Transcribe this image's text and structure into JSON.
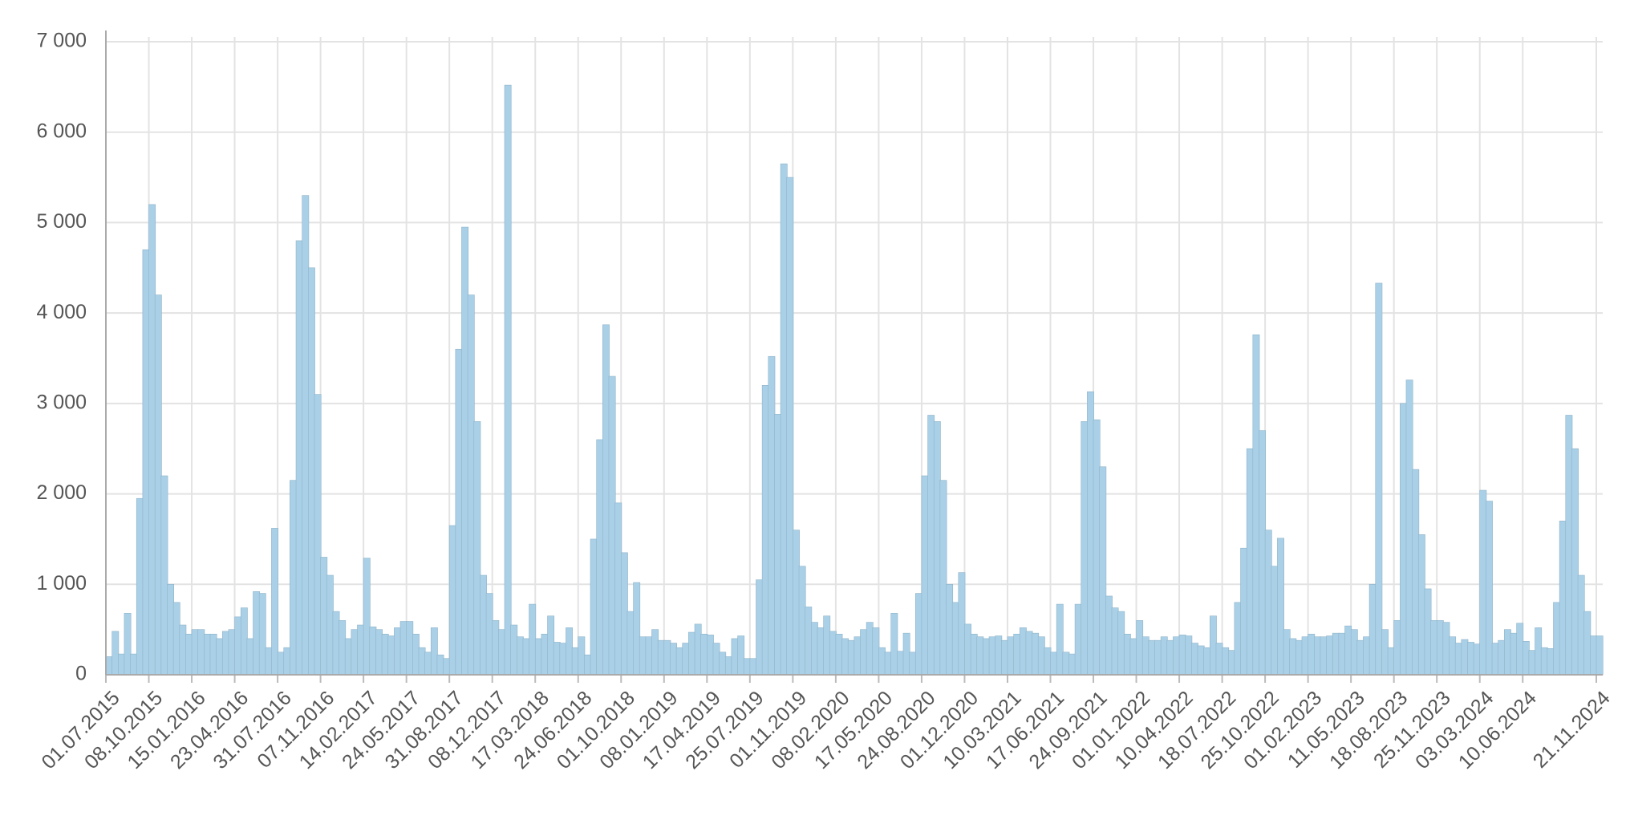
{
  "chart_data": {
    "type": "step-area",
    "color": "#a9d0e7",
    "ylim": [
      0,
      7000
    ],
    "yticks": [
      0,
      {
        "value": 1000,
        "label": "1 000"
      },
      {
        "value": 2000,
        "label": "2 000"
      },
      {
        "value": 3000,
        "label": "3 000"
      },
      {
        "value": 4000,
        "label": "4 000"
      },
      {
        "value": 5000,
        "label": "5 000"
      },
      {
        "value": 6000,
        "label": "6 000"
      },
      {
        "value": 7000,
        "label": "7 000"
      }
    ],
    "grid": true,
    "categories": [
      "01.07.2015",
      null,
      null,
      null,
      null,
      null,
      null,
      "08.10.2015",
      null,
      null,
      null,
      null,
      null,
      null,
      "15.01.2016",
      null,
      null,
      null,
      null,
      null,
      null,
      "23.04.2016",
      null,
      null,
      null,
      null,
      null,
      null,
      "31.07.2016",
      null,
      null,
      null,
      null,
      null,
      null,
      "07.11.2016",
      null,
      null,
      null,
      null,
      null,
      null,
      "14.02.2017",
      null,
      null,
      null,
      null,
      null,
      null,
      "24.05.2017",
      null,
      null,
      null,
      null,
      null,
      null,
      "31.08.2017",
      null,
      null,
      null,
      null,
      null,
      null,
      "08.12.2017",
      null,
      null,
      null,
      null,
      null,
      null,
      "17.03.2018",
      null,
      null,
      null,
      null,
      null,
      null,
      "24.06.2018",
      null,
      null,
      null,
      null,
      null,
      null,
      "01.10.2018",
      null,
      null,
      null,
      null,
      null,
      null,
      "08.01.2019",
      null,
      null,
      null,
      null,
      null,
      null,
      "17.04.2019",
      null,
      null,
      null,
      null,
      null,
      null,
      "25.07.2019",
      null,
      null,
      null,
      null,
      null,
      null,
      "01.11.2019",
      null,
      null,
      null,
      null,
      null,
      null,
      "08.02.2020",
      null,
      null,
      null,
      null,
      null,
      null,
      "17.05.2020",
      null,
      null,
      null,
      null,
      null,
      null,
      "24.08.2020",
      null,
      null,
      null,
      null,
      null,
      null,
      "01.12.2020",
      null,
      null,
      null,
      null,
      null,
      null,
      "10.03.2021",
      null,
      null,
      null,
      null,
      null,
      null,
      "17.06.2021",
      null,
      null,
      null,
      null,
      null,
      null,
      "24.09.2021",
      null,
      null,
      null,
      null,
      null,
      null,
      "01.01.2022",
      null,
      null,
      null,
      null,
      null,
      null,
      "10.04.2022",
      null,
      null,
      null,
      null,
      null,
      null,
      "18.07.2022",
      null,
      null,
      null,
      null,
      null,
      null,
      "25.10.2022",
      null,
      null,
      null,
      null,
      null,
      null,
      "01.02.2023",
      null,
      null,
      null,
      null,
      null,
      null,
      "11.05.2023",
      null,
      null,
      null,
      null,
      null,
      null,
      "18.08.2023",
      null,
      null,
      null,
      null,
      null,
      null,
      "25.11.2023",
      null,
      null,
      null,
      null,
      null,
      null,
      "03.03.2024",
      null,
      null,
      null,
      null,
      null,
      null,
      "10.06.2024",
      null,
      null,
      null,
      null,
      null,
      null,
      null,
      null,
      null,
      null,
      null,
      "21.11.2024"
    ],
    "values": [
      200,
      480,
      230,
      680,
      230,
      1950,
      4700,
      5200,
      4200,
      2200,
      1000,
      800,
      550,
      450,
      500,
      500,
      450,
      450,
      400,
      480,
      500,
      640,
      740,
      400,
      920,
      900,
      300,
      1620,
      250,
      300,
      2150,
      4800,
      5300,
      4500,
      3100,
      1300,
      1100,
      700,
      600,
      400,
      500,
      550,
      1290,
      530,
      500,
      450,
      430,
      520,
      590,
      590,
      450,
      300,
      250,
      520,
      220,
      180,
      1650,
      3600,
      4950,
      4200,
      2800,
      1100,
      900,
      600,
      500,
      6520,
      550,
      420,
      400,
      780,
      400,
      450,
      650,
      360,
      350,
      520,
      300,
      420,
      220,
      1500,
      2600,
      3870,
      3300,
      1900,
      1350,
      700,
      1020,
      420,
      420,
      500,
      380,
      380,
      350,
      300,
      350,
      470,
      560,
      450,
      440,
      350,
      250,
      200,
      400,
      430,
      180,
      180,
      1050,
      3200,
      3520,
      2880,
      5650,
      5500,
      1600,
      1200,
      750,
      580,
      520,
      650,
      480,
      450,
      400,
      380,
      420,
      500,
      580,
      520,
      300,
      250,
      680,
      260,
      460,
      250,
      900,
      2200,
      2870,
      2800,
      2150,
      1000,
      800,
      1130,
      560,
      450,
      420,
      400,
      420,
      430,
      380,
      420,
      450,
      520,
      480,
      460,
      420,
      300,
      250,
      780,
      250,
      230,
      780,
      2800,
      3130,
      2820,
      2300,
      870,
      740,
      700,
      450,
      400,
      600,
      420,
      380,
      380,
      420,
      380,
      420,
      440,
      430,
      350,
      320,
      300,
      650,
      350,
      300,
      270,
      800,
      1400,
      2500,
      3760,
      2700,
      1600,
      1200,
      1510,
      500,
      400,
      380,
      420,
      450,
      420,
      420,
      430,
      460,
      460,
      540,
      500,
      380,
      420,
      1000,
      4330,
      500,
      300,
      600,
      3000,
      3260,
      2270,
      1550,
      950,
      600,
      600,
      580,
      420,
      350,
      390,
      360,
      340,
      2040,
      1920,
      350,
      380,
      500,
      460,
      570,
      370,
      270,
      520,
      300,
      290,
      800,
      1700,
      2870,
      2500,
      1100,
      700,
      430,
      430
    ]
  }
}
